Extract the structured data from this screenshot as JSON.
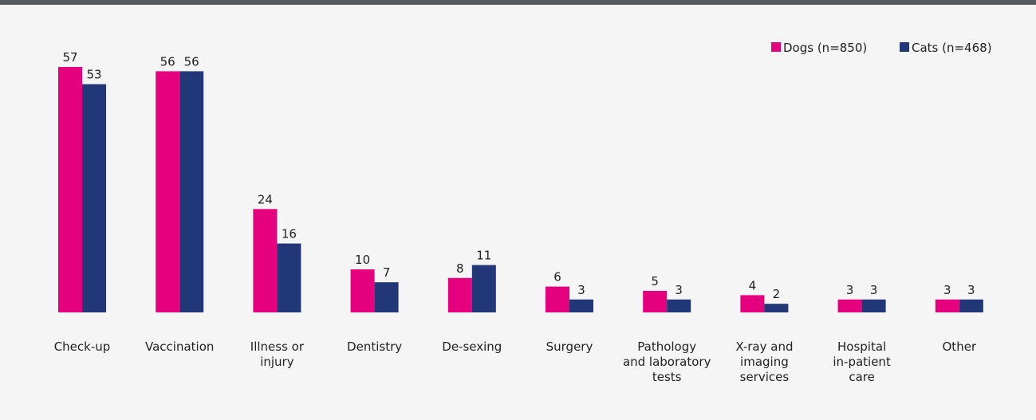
{
  "chart_data": {
    "type": "bar",
    "categories": [
      [
        "Check-up"
      ],
      [
        "Vaccination"
      ],
      [
        "Illness or",
        "injury"
      ],
      [
        "Dentistry"
      ],
      [
        "De-sexing"
      ],
      [
        "Surgery"
      ],
      [
        "Pathology",
        "and laboratory",
        "tests"
      ],
      [
        "X-ray and",
        "imaging",
        "services"
      ],
      [
        "Hospital",
        "in-patient",
        "care"
      ],
      [
        "Other"
      ]
    ],
    "series": [
      {
        "name": "Dogs (n=850)",
        "color": "#e5007e",
        "values": [
          57,
          56,
          24,
          10,
          8,
          6,
          5,
          4,
          3,
          3
        ]
      },
      {
        "name": "Cats (n=468)",
        "color": "#223777",
        "values": [
          53,
          56,
          16,
          7,
          11,
          3,
          3,
          2,
          3,
          3
        ]
      }
    ],
    "ylim": [
      0,
      57
    ],
    "legend_position": "top-right",
    "grid": false
  }
}
